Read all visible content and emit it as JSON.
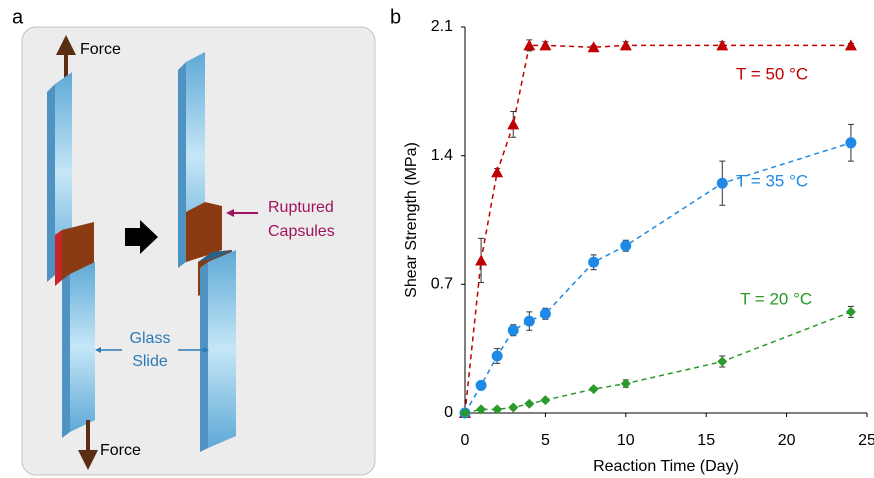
{
  "diagram": {
    "panel_label": "a",
    "force_top": "Force",
    "force_bottom": "Force",
    "ruptured": [
      "Ruptured",
      "Capsules"
    ],
    "glass": [
      "Glass",
      "Slide"
    ]
  },
  "chart_data": {
    "type": "scatter",
    "panel_label": "b",
    "x_label": "Reaction Time (Day)",
    "y_label": "Shear Strength (MPa)",
    "x": [
      0,
      1,
      2,
      3,
      4,
      5,
      8,
      10,
      16,
      24
    ],
    "xlim": [
      0,
      25
    ],
    "xticks": [
      0,
      5,
      10,
      15,
      20,
      25
    ],
    "ylim": [
      0,
      2.1
    ],
    "yticks": [
      0,
      0.7,
      1.4,
      2.1
    ],
    "series": [
      {
        "name": "T = 50 °C",
        "color": "#c00000",
        "marker": "triangle",
        "values": [
          0,
          0.83,
          1.31,
          1.57,
          2.0,
          2.0,
          1.99,
          2.0,
          2.0,
          2.0
        ],
        "errors": [
          0.01,
          0.12,
          0.02,
          0.07,
          0.03,
          0.02,
          0.01,
          0.02,
          0.02,
          0.01
        ]
      },
      {
        "name": "T = 35 °C",
        "color": "#1e8ae6",
        "marker": "circle",
        "values": [
          0,
          0.15,
          0.31,
          0.45,
          0.5,
          0.54,
          0.82,
          0.91,
          1.25,
          1.47
        ],
        "errors": [
          0.01,
          0.02,
          0.04,
          0.03,
          0.05,
          0.03,
          0.04,
          0.03,
          0.12,
          0.1
        ]
      },
      {
        "name": "T = 20 °C",
        "color": "#2a9a2a",
        "marker": "diamond",
        "values": [
          0,
          0.02,
          0.02,
          0.03,
          0.05,
          0.07,
          0.13,
          0.16,
          0.28,
          0.55
        ],
        "errors": [
          0.01,
          0.01,
          0.01,
          0.01,
          0.01,
          0.01,
          0.01,
          0.02,
          0.03,
          0.03
        ]
      }
    ]
  }
}
